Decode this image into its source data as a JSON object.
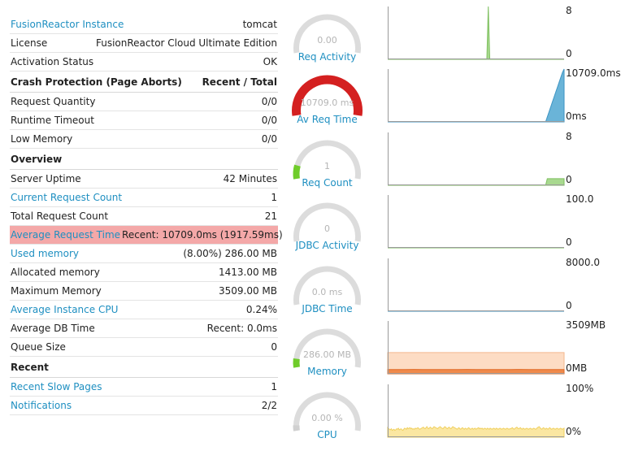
{
  "rows": [
    {
      "key": "FusionReactor Instance",
      "value": "tomcat",
      "type": "link"
    },
    {
      "key": "License",
      "value": "FusionReactor Cloud Ultimate Edition",
      "type": "plain"
    },
    {
      "key": "Activation Status",
      "value": "OK",
      "type": "plain"
    },
    {
      "key": "Crash Protection (Page Aborts)",
      "value": "Recent / Total",
      "type": "section"
    },
    {
      "key": "Request Quantity",
      "value": "0/0",
      "type": "plain"
    },
    {
      "key": "Runtime Timeout",
      "value": "0/0",
      "type": "plain"
    },
    {
      "key": "Low Memory",
      "value": "0/0",
      "type": "plain"
    },
    {
      "key": "Overview",
      "value": "",
      "type": "section"
    },
    {
      "key": "Server Uptime",
      "value": "42 Minutes",
      "type": "plain"
    },
    {
      "key": "Current Request Count",
      "value": "1",
      "type": "link"
    },
    {
      "key": "Total Request Count",
      "value": "21",
      "type": "plain"
    },
    {
      "key": "Average Request Time",
      "value": "Recent: 10709.0ms (1917.59ms)",
      "type": "highlight"
    },
    {
      "key": "Used memory",
      "value": "(8.00%) 286.00 MB",
      "type": "link"
    },
    {
      "key": "Allocated memory",
      "value": "1413.00 MB",
      "type": "plain"
    },
    {
      "key": "Maximum Memory",
      "value": "3509.00 MB",
      "type": "plain"
    },
    {
      "key": "Average Instance CPU",
      "value": "0.24%",
      "type": "link"
    },
    {
      "key": "Average DB Time",
      "value": "Recent: 0.0ms",
      "type": "plain"
    },
    {
      "key": "Queue Size",
      "value": "0",
      "type": "plain"
    },
    {
      "key": "Recent",
      "value": "",
      "type": "section"
    },
    {
      "key": "Recent Slow Pages",
      "value": "1",
      "type": "link"
    },
    {
      "key": "Notifications",
      "value": "2/2",
      "type": "link"
    }
  ],
  "gauges": [
    {
      "name": "req-activity",
      "label": "Req Activity",
      "value": "0.00",
      "fraction": 0,
      "color": "#d0d0d0"
    },
    {
      "name": "av-req-time",
      "label": "Av Req Time",
      "value": "10709.0 ms",
      "fraction": 1,
      "color": "#d42020"
    },
    {
      "name": "req-count",
      "label": "Req Count",
      "value": "1",
      "fraction": 0.125,
      "color": "#6fcc2a"
    },
    {
      "name": "jdbc-activity",
      "label": "JDBC Activity",
      "value": "0",
      "fraction": 0,
      "color": "#d0d0d0"
    },
    {
      "name": "jdbc-time",
      "label": "JDBC Time",
      "value": "0.0 ms",
      "fraction": 0,
      "color": "#d0d0d0"
    },
    {
      "name": "memory",
      "label": "Memory",
      "value": "286.00 MB",
      "fraction": 0.08,
      "color": "#6fcc2a"
    },
    {
      "name": "cpu",
      "label": "CPU",
      "value": "0.00 %",
      "fraction": 0.0024,
      "color": "#d0d0d0"
    }
  ],
  "chart_data": [
    {
      "type": "area",
      "name": "req-activity",
      "max_label": "8",
      "min_label": "0",
      "ylim": [
        0,
        8
      ],
      "fill": "#a8d98f",
      "stroke": "#7dbf5e",
      "values": [
        0,
        0,
        0,
        0,
        0,
        0,
        0,
        0,
        0,
        0,
        0,
        0,
        0,
        0,
        0,
        0,
        0,
        0,
        0,
        0,
        0,
        0,
        0,
        0,
        0,
        0,
        0,
        0,
        0,
        0,
        0,
        0,
        0,
        0,
        0,
        0,
        0,
        0,
        0,
        0,
        0,
        0,
        0,
        0,
        0,
        0,
        0,
        0,
        0,
        0,
        0,
        0,
        0,
        0,
        0,
        0,
        0,
        0,
        0,
        0,
        0,
        0,
        0,
        0,
        0,
        0,
        0,
        0,
        0,
        8,
        0,
        0,
        0,
        0,
        0,
        0,
        0,
        0,
        0,
        0,
        0,
        0,
        0,
        0,
        0,
        0,
        0,
        0,
        0,
        0,
        0,
        0,
        0,
        0,
        0,
        0,
        0,
        0,
        0,
        0,
        0,
        0,
        0,
        0,
        0,
        0,
        0,
        0,
        0,
        0,
        0,
        0,
        0,
        0,
        0,
        0,
        0,
        0,
        0,
        0,
        0,
        0
      ]
    },
    {
      "type": "area",
      "name": "av-req-time",
      "max_label": "10709.0ms",
      "min_label": "0ms",
      "ylim": [
        0,
        10709
      ],
      "fill": "#6ab4d8",
      "stroke": "#3e95c4",
      "values": [
        0,
        0,
        0,
        0,
        0,
        0,
        0,
        0,
        0,
        0,
        0,
        0,
        0,
        0,
        0,
        0,
        0,
        0,
        0,
        0,
        0,
        0,
        0,
        0,
        0,
        0,
        0,
        0,
        0,
        0,
        0,
        0,
        0,
        0,
        0,
        0,
        0,
        0,
        0,
        0,
        0,
        0,
        0,
        0,
        0,
        0,
        0,
        0,
        0,
        0,
        0,
        0,
        0,
        0,
        0,
        0,
        0,
        0,
        0,
        0,
        0,
        0,
        0,
        0,
        0,
        0,
        0,
        0,
        0,
        0,
        0,
        0,
        0,
        0,
        0,
        0,
        0,
        0,
        0,
        0,
        0,
        0,
        0,
        0,
        0,
        0,
        0,
        0,
        0,
        0,
        0,
        0,
        0,
        0,
        0,
        1000,
        2000,
        3000,
        4000,
        5000,
        6000,
        7000,
        8000,
        9000,
        10000,
        10709
      ]
    },
    {
      "type": "area",
      "name": "req-count",
      "max_label": "8",
      "min_label": "0",
      "ylim": [
        0,
        8
      ],
      "fill": "#a8d98f",
      "stroke": "#7dbf5e",
      "values": [
        0,
        0,
        0,
        0,
        0,
        0,
        0,
        0,
        0,
        0,
        0,
        0,
        0,
        0,
        0,
        0,
        0,
        0,
        0,
        0,
        0,
        0,
        0,
        0,
        0,
        0,
        0,
        0,
        0,
        0,
        0,
        0,
        0,
        0,
        0,
        0,
        0,
        0,
        0,
        0,
        0,
        0,
        0,
        0,
        0,
        0,
        0,
        0,
        0,
        0,
        0,
        0,
        0,
        0,
        0,
        0,
        0,
        0,
        0,
        0,
        0,
        0,
        0,
        0,
        0,
        0,
        0,
        0,
        0,
        0,
        0,
        0,
        0,
        0,
        0,
        0,
        0,
        0,
        0,
        0,
        0,
        0,
        0,
        0,
        0,
        0,
        0,
        0,
        0,
        0,
        0,
        0,
        0,
        0,
        0,
        1,
        1,
        1,
        1,
        1,
        1,
        1,
        1,
        1,
        1,
        1
      ]
    },
    {
      "type": "area",
      "name": "jdbc-activity",
      "max_label": "100.0",
      "min_label": "0",
      "ylim": [
        0,
        100
      ],
      "fill": "#a8d98f",
      "stroke": "#7dbf5e",
      "values": [
        0,
        0,
        0,
        0,
        0,
        0,
        0,
        0,
        0,
        0,
        0,
        0,
        0,
        0,
        0,
        0,
        0,
        0,
        0,
        0,
        0
      ]
    },
    {
      "type": "area",
      "name": "jdbc-time",
      "max_label": "8000.0",
      "min_label": "0",
      "ylim": [
        0,
        8000
      ],
      "fill": "#6ab4d8",
      "stroke": "#3e95c4",
      "values": [
        0,
        0,
        0,
        0,
        0,
        0,
        0,
        0,
        0,
        0,
        0,
        0,
        0,
        0,
        0,
        0,
        0,
        0,
        0,
        0,
        0
      ]
    },
    {
      "type": "area",
      "name": "memory",
      "max_label": "3509MB",
      "min_label": "0MB",
      "ylim": [
        0,
        3509
      ],
      "series": [
        {
          "name": "allocated",
          "fill": "#fddcc4",
          "stroke": "#f4b88e",
          "values": [
            1413,
            1413,
            1413,
            1413,
            1413,
            1413,
            1413,
            1413,
            1413,
            1413,
            1413,
            1413,
            1413,
            1413,
            1413,
            1413,
            1413,
            1413,
            1413,
            1413,
            1413
          ]
        },
        {
          "name": "used",
          "fill": "#f08a4b",
          "stroke": "#e06a26",
          "values": [
            286,
            286,
            286,
            290,
            286,
            286,
            283,
            286,
            286,
            290,
            286,
            286,
            286,
            283,
            286,
            290,
            286,
            286,
            286,
            286,
            286
          ]
        }
      ]
    },
    {
      "type": "area",
      "name": "cpu",
      "max_label": "100%",
      "min_label": "0%",
      "ylim": [
        0,
        100
      ],
      "fill": "#fbe7a2",
      "stroke": "#f0d060",
      "values": [
        18,
        16,
        15,
        14,
        16,
        13,
        14,
        15,
        13,
        14,
        16,
        15,
        17,
        14,
        15,
        16,
        14,
        13,
        15,
        17,
        16,
        15,
        18,
        16,
        17,
        18,
        16,
        17,
        15,
        16,
        15,
        17,
        16,
        17,
        18,
        16,
        15,
        16,
        17,
        18,
        19,
        17,
        16,
        18,
        20,
        17,
        16,
        18,
        19,
        17,
        16,
        18,
        20,
        19,
        18,
        17,
        16,
        18,
        19,
        20,
        18,
        17,
        16,
        18,
        20,
        19,
        17,
        16,
        18,
        19,
        17,
        16,
        18,
        20,
        19,
        18,
        17,
        16,
        15,
        17,
        18,
        16,
        15,
        17,
        18,
        16,
        15,
        17,
        16,
        15,
        17,
        18,
        16,
        15,
        16,
        17,
        15,
        16,
        17,
        15,
        16,
        17,
        18,
        16,
        17,
        16,
        17,
        15,
        16,
        17,
        16,
        15,
        17,
        16,
        15,
        17,
        16,
        15,
        16,
        17,
        16,
        15,
        17,
        16,
        15,
        16,
        17,
        16,
        15,
        16,
        17,
        16,
        15,
        16,
        17,
        16,
        15,
        16,
        16,
        17,
        18,
        16,
        15,
        17,
        18,
        19,
        17,
        16,
        17,
        18,
        16,
        15,
        17,
        16,
        15,
        16,
        17,
        16,
        15,
        16,
        17,
        16,
        15,
        16,
        17,
        16,
        15,
        16,
        18,
        19,
        20,
        18,
        16,
        15,
        17,
        18,
        16,
        15,
        17,
        16,
        15,
        17,
        18,
        16,
        15,
        16,
        17,
        16,
        15,
        16,
        17,
        16,
        15,
        16,
        17,
        16,
        15,
        16,
        17
      ]
    }
  ]
}
